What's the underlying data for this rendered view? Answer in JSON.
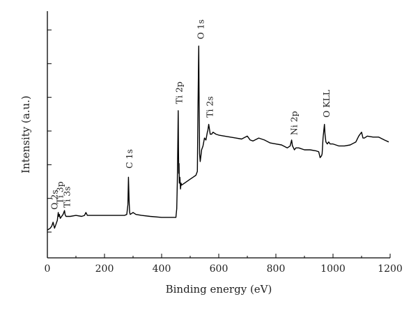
{
  "chart_data": {
    "type": "line",
    "xlabel": "Binding energy (eV)",
    "ylabel": "Intensity (a.u.)",
    "xlim": [
      0,
      1200
    ],
    "ylim": [
      0,
      100
    ],
    "xticks": [
      "0",
      "200",
      "400",
      "600",
      "800",
      "1000",
      "1200"
    ],
    "ytick_count": 7,
    "grid": false,
    "series": [
      {
        "x": [
          0,
          10,
          15,
          20,
          25,
          30,
          35,
          38,
          40,
          42,
          45,
          50,
          55,
          60,
          62,
          65,
          70,
          80,
          100,
          120,
          130,
          135,
          140,
          160,
          180,
          200,
          220,
          240,
          260,
          270,
          278,
          282,
          284,
          286,
          288,
          290,
          300,
          310,
          330,
          360,
          400,
          430,
          450,
          453,
          455,
          457,
          458,
          459,
          460,
          461,
          462,
          464,
          466,
          468,
          470,
          480,
          490,
          500,
          510,
          520,
          525,
          527,
          529,
          530,
          531,
          533,
          535,
          540,
          545,
          550,
          555,
          560,
          562,
          565,
          568,
          570,
          575,
          580,
          590,
          600,
          620,
          640,
          660,
          680,
          700,
          710,
          720,
          740,
          760,
          780,
          800,
          820,
          840,
          850,
          855,
          858,
          860,
          865,
          870,
          880,
          900,
          920,
          940,
          950,
          955,
          960,
          962,
          965,
          970,
          972,
          975,
          980,
          985,
          990,
          1000,
          1020,
          1040,
          1060,
          1080,
          1090,
          1100,
          1105,
          1110,
          1120,
          1140,
          1160,
          1180,
          1195
        ],
        "y": [
          1,
          2,
          3,
          5,
          2,
          4,
          6,
          10,
          8,
          9,
          7,
          8,
          9,
          11,
          9,
          8,
          8,
          8,
          8.5,
          8,
          8.5,
          10,
          8.5,
          8.5,
          8.5,
          8.5,
          8.5,
          8.5,
          8.5,
          8.5,
          9,
          14,
          28,
          16,
          10,
          9,
          10,
          9,
          8.5,
          8,
          7.5,
          7.5,
          7.5,
          12,
          25,
          50,
          62,
          42,
          30,
          35,
          25,
          28,
          22,
          25,
          24,
          25,
          26,
          27,
          28,
          29,
          31,
          60,
          85,
          95,
          72,
          40,
          36,
          42,
          44,
          48,
          47,
          51,
          52,
          55,
          52,
          50,
          50,
          51,
          50,
          49.5,
          49,
          48.5,
          48,
          47.5,
          49,
          47,
          46.5,
          48,
          47,
          45.5,
          45,
          44.5,
          43,
          44,
          47,
          44,
          43.5,
          42,
          43,
          43,
          42,
          42,
          41.5,
          41,
          38,
          39,
          40,
          48,
          55,
          50,
          46,
          45,
          46,
          45,
          45,
          44,
          44,
          44.5,
          46,
          49,
          51,
          48,
          48,
          49,
          48.5,
          48.5,
          47,
          46
        ]
      }
    ],
    "annotations": [
      {
        "label": "O  2s",
        "x": 26,
        "y": 10
      },
      {
        "label": "Ti  3p",
        "x": 45,
        "y": 13
      },
      {
        "label": "Ti 3s",
        "x": 70,
        "y": 11
      },
      {
        "label": "C 1s",
        "x": 288,
        "y": 31
      },
      {
        "label": "Ti  2p",
        "x": 462,
        "y": 64
      },
      {
        "label": "O 1s",
        "x": 538,
        "y": 97
      },
      {
        "label": "Ti  2s",
        "x": 570,
        "y": 57
      },
      {
        "label": "Ni 2p",
        "x": 865,
        "y": 48
      },
      {
        "label": "O KLL",
        "x": 978,
        "y": 57
      }
    ]
  }
}
